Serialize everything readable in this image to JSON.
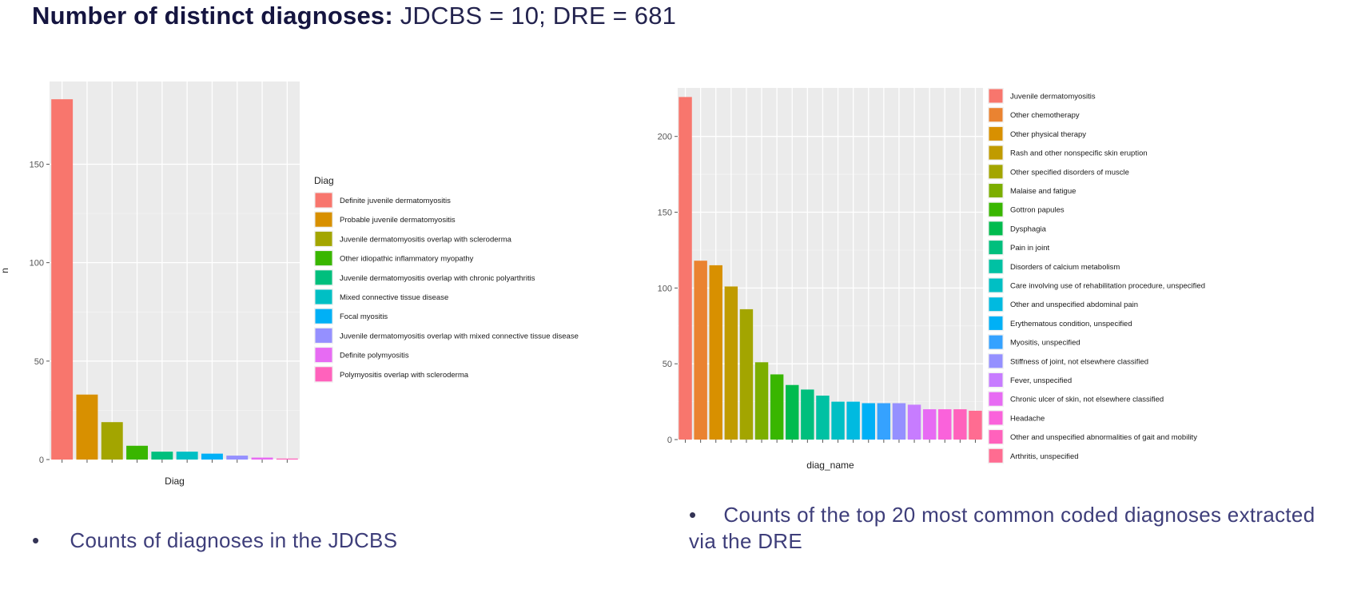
{
  "title": {
    "bold": "Number of distinct diagnoses:",
    "rest": " JDCBS = 10; DRE = 681"
  },
  "captions": {
    "bullet": "•",
    "left": "Counts of diagnoses in the JDCBS",
    "right": "Counts of the top 20 most common coded diagnoses extracted via the DRE"
  },
  "chart_data": [
    {
      "type": "bar",
      "xlabel": "Diag",
      "ylabel": "n",
      "ylim": [
        0,
        192
      ],
      "yticks": [
        0,
        50,
        100,
        150
      ],
      "grid": true,
      "legend_title": "Diag",
      "legend_placement": "right",
      "categories": [
        "Definite juvenile dermatomyositis",
        "Probable juvenile dermatomyositis",
        "Juvenile dermatomyositis overlap with scleroderma",
        "Other idiopathic inflammatory myopathy",
        "Juvenile dermatomyositis overlap with chronic polyarthritis",
        "Mixed connective tissue disease",
        "Focal myositis",
        "Juvenile dermatomyositis overlap with mixed connective tissue disease",
        "Definite polymyositis",
        "Polymyositis overlap with scleroderma"
      ],
      "values": [
        183,
        33,
        19,
        7,
        4,
        4,
        3,
        2,
        1,
        0.5
      ],
      "colors": [
        "#f8766d",
        "#d89000",
        "#a3a500",
        "#39b600",
        "#00bf7d",
        "#00bfc4",
        "#00b0f6",
        "#9590ff",
        "#e76bf3",
        "#ff62bc"
      ]
    },
    {
      "type": "bar",
      "xlabel": "diag_name",
      "ylabel": "",
      "ylim": [
        0,
        232
      ],
      "yticks": [
        0,
        50,
        100,
        150,
        200
      ],
      "grid": true,
      "legend_title": "",
      "legend_placement": "right",
      "categories": [
        "Juvenile dermatomyositis",
        "Other chemotherapy",
        "Other physical therapy",
        "Rash and other nonspecific skin eruption",
        "Other specified disorders of muscle",
        "Malaise and fatigue",
        "Gottron papules",
        "Dysphagia",
        "Pain in joint",
        "Disorders of calcium metabolism",
        "Care involving use of rehabilitation procedure, unspecified",
        "Other and unspecified abdominal pain",
        "Erythematous condition, unspecified",
        "Myositis, unspecified",
        "Stiffness of joint, not elsewhere classified",
        "Fever, unspecified",
        "Chronic ulcer of skin, not elsewhere classified",
        "Headache",
        "Other and unspecified abnormalities of gait and mobility",
        "Arthritis, unspecified"
      ],
      "values": [
        226,
        118,
        115,
        101,
        86,
        51,
        43,
        36,
        33,
        29,
        25,
        25,
        24,
        24,
        24,
        23,
        20,
        20,
        20,
        19
      ],
      "colors": [
        "#f8766d",
        "#ea8331",
        "#d89000",
        "#c09b00",
        "#a3a500",
        "#7cae00",
        "#39b600",
        "#00bb4e",
        "#00bf7d",
        "#00c1a3",
        "#00bfc4",
        "#00bae0",
        "#00b0f6",
        "#35a2ff",
        "#9590ff",
        "#c77cff",
        "#e76bf3",
        "#fa62db",
        "#ff62bc",
        "#ff6c91"
      ]
    }
  ]
}
